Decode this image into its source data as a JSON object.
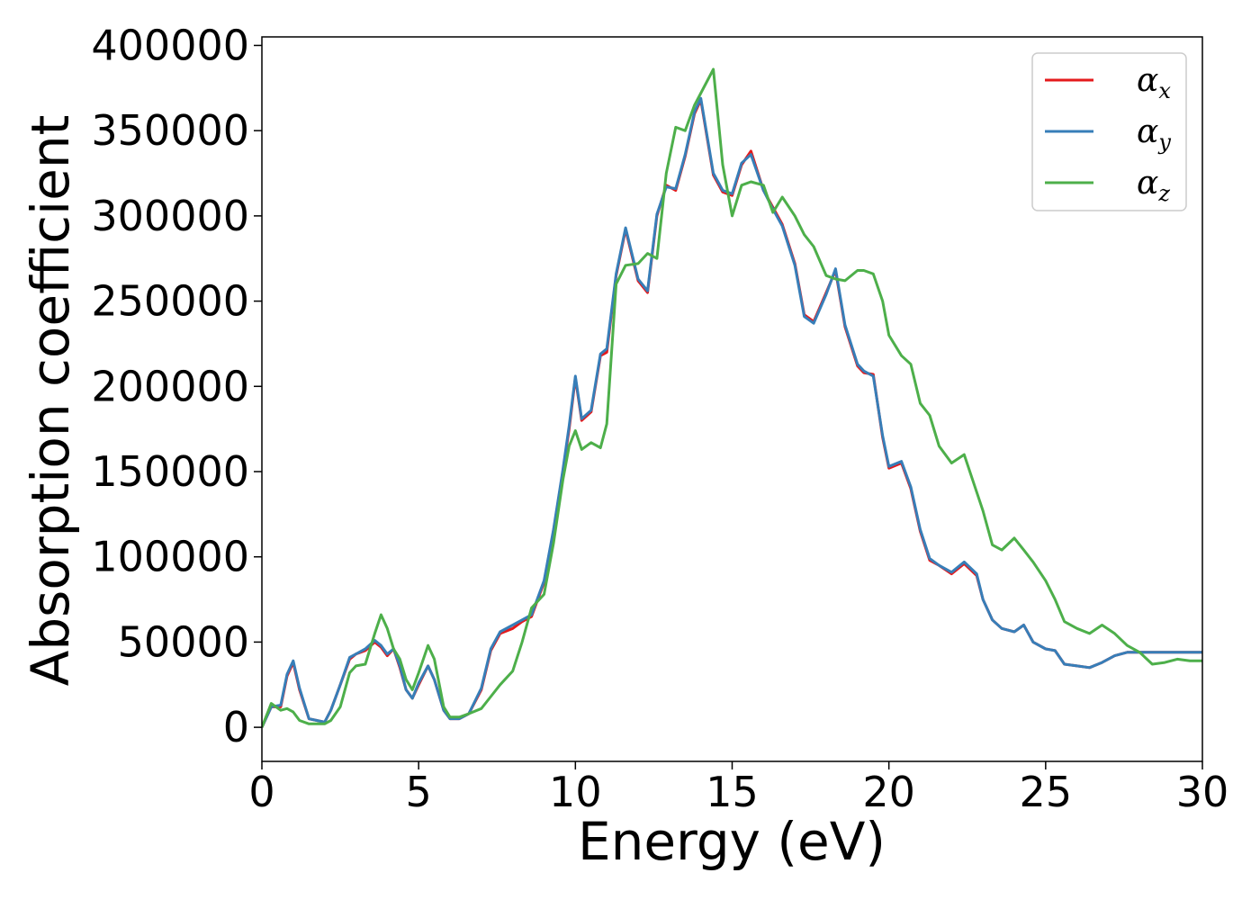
{
  "chart_data": {
    "type": "line",
    "title": "",
    "xlabel": "Energy (eV)",
    "ylabel": "Absorption coefficient",
    "xlim": [
      0,
      30
    ],
    "ylim": [
      -20000,
      405000
    ],
    "xticks": [
      0,
      5,
      10,
      15,
      20,
      25,
      30
    ],
    "yticks": [
      0,
      50000,
      100000,
      150000,
      200000,
      250000,
      300000,
      350000,
      400000
    ],
    "grid": false,
    "legend_position": "top-right",
    "series": [
      {
        "name": "α_x",
        "label_base": "α",
        "label_sub": "x",
        "color": "#e41a1c",
        "x": [
          0,
          0.3,
          0.6,
          0.8,
          1.0,
          1.2,
          1.5,
          2.0,
          2.2,
          2.5,
          2.8,
          3.0,
          3.3,
          3.6,
          3.8,
          4.0,
          4.2,
          4.4,
          4.6,
          4.8,
          5.0,
          5.3,
          5.5,
          5.8,
          6.0,
          6.3,
          6.6,
          7.0,
          7.3,
          7.6,
          8.0,
          8.3,
          8.6,
          9.0,
          9.3,
          9.6,
          9.8,
          10.0,
          10.2,
          10.5,
          10.8,
          11.0,
          11.3,
          11.6,
          12.0,
          12.3,
          12.6,
          12.9,
          13.2,
          13.5,
          13.8,
          14.0,
          14.4,
          14.7,
          15.0,
          15.3,
          15.6,
          16.0,
          16.3,
          16.6,
          17.0,
          17.3,
          17.6,
          18.0,
          18.3,
          18.6,
          19.0,
          19.2,
          19.5,
          19.8,
          20.0,
          20.4,
          20.7,
          21.0,
          21.3,
          21.6,
          22.0,
          22.4,
          22.8,
          23.0,
          23.3,
          23.6,
          24.0,
          24.3,
          24.6,
          25.0,
          25.3,
          25.6,
          26.0,
          26.4,
          26.8,
          27.2,
          27.6,
          28.0,
          28.4,
          28.8,
          29.2,
          29.6,
          30.0
        ],
        "values": [
          0,
          12000,
          12000,
          30000,
          38000,
          22000,
          5000,
          3000,
          10000,
          25000,
          40000,
          43000,
          45000,
          50000,
          47000,
          42000,
          46000,
          35000,
          22000,
          17000,
          25000,
          36000,
          28000,
          10000,
          5000,
          5000,
          8000,
          22000,
          45000,
          55000,
          58000,
          62000,
          65000,
          85000,
          115000,
          150000,
          175000,
          205000,
          180000,
          185000,
          218000,
          220000,
          265000,
          292000,
          262000,
          255000,
          300000,
          318000,
          315000,
          335000,
          360000,
          368000,
          324000,
          314000,
          312000,
          330000,
          338000,
          315000,
          305000,
          295000,
          272000,
          242000,
          238000,
          255000,
          268000,
          235000,
          212000,
          208000,
          207000,
          170000,
          152000,
          155000,
          140000,
          115000,
          98000,
          95000,
          90000,
          96000,
          89000,
          75000,
          63000,
          58000,
          56000,
          60000,
          50000,
          46000,
          45000,
          37000,
          36000,
          35000,
          38000,
          42000,
          44000,
          44000,
          44000,
          44000,
          44000,
          44000,
          44000
        ],
        "note_units": "Energy in eV, absorption coefficient"
      },
      {
        "name": "α_y",
        "label_base": "α",
        "label_sub": "y",
        "color": "#377eb8",
        "x": [
          0,
          0.3,
          0.6,
          0.8,
          1.0,
          1.2,
          1.5,
          2.0,
          2.2,
          2.5,
          2.8,
          3.0,
          3.3,
          3.6,
          3.8,
          4.0,
          4.2,
          4.4,
          4.6,
          4.8,
          5.0,
          5.3,
          5.5,
          5.8,
          6.0,
          6.3,
          6.6,
          7.0,
          7.3,
          7.6,
          8.0,
          8.3,
          8.6,
          9.0,
          9.3,
          9.6,
          9.8,
          10.0,
          10.2,
          10.5,
          10.8,
          11.0,
          11.3,
          11.6,
          12.0,
          12.3,
          12.6,
          12.9,
          13.2,
          13.5,
          13.8,
          14.0,
          14.4,
          14.7,
          15.0,
          15.3,
          15.6,
          16.0,
          16.3,
          16.6,
          17.0,
          17.3,
          17.6,
          18.0,
          18.3,
          18.6,
          19.0,
          19.2,
          19.5,
          19.8,
          20.0,
          20.4,
          20.7,
          21.0,
          21.3,
          21.6,
          22.0,
          22.4,
          22.8,
          23.0,
          23.3,
          23.6,
          24.0,
          24.3,
          24.6,
          25.0,
          25.3,
          25.6,
          26.0,
          26.4,
          26.8,
          27.2,
          27.6,
          28.0,
          28.4,
          28.8,
          29.2,
          29.6,
          30.0
        ],
        "values": [
          0,
          12000,
          13000,
          31000,
          39000,
          23000,
          5000,
          3000,
          10000,
          25000,
          41000,
          43000,
          46000,
          51000,
          48000,
          43000,
          46000,
          36000,
          22000,
          17000,
          26000,
          36000,
          28000,
          10000,
          5000,
          5000,
          8000,
          23000,
          46000,
          56000,
          60000,
          63000,
          66000,
          86000,
          116000,
          151000,
          177000,
          206000,
          181000,
          186000,
          219000,
          222000,
          266000,
          293000,
          263000,
          256000,
          301000,
          317000,
          316000,
          336000,
          361000,
          369000,
          325000,
          315000,
          313000,
          331000,
          336000,
          315000,
          304000,
          294000,
          271000,
          241000,
          237000,
          254000,
          269000,
          236000,
          213000,
          209000,
          206000,
          171000,
          153000,
          156000,
          141000,
          116000,
          99000,
          95000,
          91000,
          97000,
          90000,
          75000,
          63000,
          58000,
          56000,
          60000,
          50000,
          46000,
          45000,
          37000,
          36000,
          35000,
          38000,
          42000,
          44000,
          44000,
          44000,
          44000,
          44000,
          44000,
          44000
        ]
      },
      {
        "name": "α_z",
        "label_base": "α",
        "label_sub": "z",
        "color": "#4daf4a",
        "x": [
          0,
          0.3,
          0.6,
          0.8,
          1.0,
          1.2,
          1.5,
          2.0,
          2.2,
          2.5,
          2.8,
          3.0,
          3.3,
          3.6,
          3.8,
          4.0,
          4.2,
          4.4,
          4.6,
          4.8,
          5.0,
          5.3,
          5.5,
          5.8,
          6.0,
          6.3,
          6.6,
          7.0,
          7.3,
          7.6,
          8.0,
          8.3,
          8.6,
          9.0,
          9.3,
          9.6,
          9.8,
          10.0,
          10.2,
          10.5,
          10.8,
          11.0,
          11.3,
          11.6,
          12.0,
          12.3,
          12.6,
          12.9,
          13.2,
          13.5,
          13.8,
          14.0,
          14.4,
          14.7,
          15.0,
          15.3,
          15.6,
          16.0,
          16.3,
          16.6,
          17.0,
          17.3,
          17.6,
          18.0,
          18.3,
          18.6,
          19.0,
          19.2,
          19.5,
          19.8,
          20.0,
          20.4,
          20.7,
          21.0,
          21.3,
          21.6,
          22.0,
          22.4,
          22.8,
          23.0,
          23.3,
          23.6,
          24.0,
          24.3,
          24.6,
          25.0,
          25.3,
          25.6,
          26.0,
          26.4,
          26.8,
          27.2,
          27.6,
          28.0,
          28.4,
          28.8,
          29.2,
          29.6,
          30.0
        ],
        "values": [
          0,
          14000,
          10000,
          11000,
          9000,
          4000,
          2000,
          2000,
          4000,
          12000,
          32000,
          36000,
          37000,
          55000,
          66000,
          58000,
          46000,
          40000,
          28000,
          22000,
          32000,
          48000,
          40000,
          12000,
          6000,
          6000,
          8000,
          11000,
          18000,
          25000,
          33000,
          50000,
          70000,
          78000,
          108000,
          145000,
          165000,
          174000,
          163000,
          167000,
          164000,
          178000,
          260000,
          271000,
          272000,
          278000,
          275000,
          325000,
          352000,
          350000,
          365000,
          372000,
          386000,
          330000,
          300000,
          318000,
          320000,
          318000,
          302000,
          311000,
          300000,
          289000,
          282000,
          265000,
          263000,
          262000,
          268000,
          268000,
          266000,
          250000,
          230000,
          218000,
          213000,
          190000,
          183000,
          165000,
          155000,
          160000,
          138000,
          127000,
          107000,
          104000,
          111000,
          104000,
          97000,
          86000,
          75000,
          62000,
          58000,
          55000,
          60000,
          55000,
          48000,
          44000,
          37000,
          38000,
          40000,
          39000,
          39000
        ]
      }
    ]
  }
}
